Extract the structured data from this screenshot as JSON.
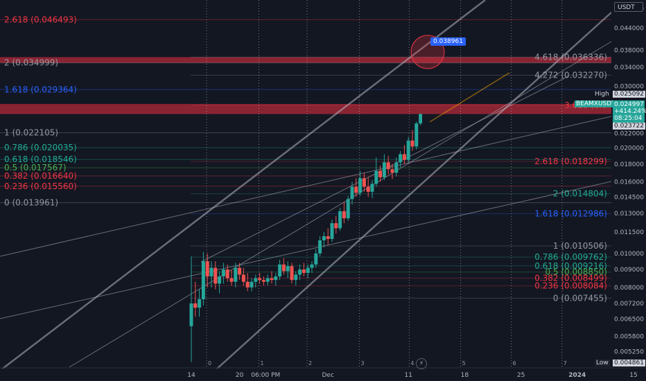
{
  "currency": "USDT",
  "tooltip_value": "0.038961",
  "high_label": "High",
  "high_value": "0.025092",
  "pair": "BEAMXUSDT",
  "price": "0.024997",
  "price_change": "+414.24%",
  "countdown": "08:25:04",
  "prev_value": "0.023722",
  "low_label": "Low",
  "low_value": "0.004861",
  "bolt_icon": "lightning-icon",
  "colors": {
    "background": "#131722",
    "up": "#26a69a",
    "down": "#ef5350",
    "zone": "#b2293a",
    "fib_red": "#f23645",
    "fib_blue": "#2962ff",
    "fib_teal": "#22ab94",
    "fib_gray": "#9598a1"
  },
  "fib_left": [
    {
      "label": "2.618 (0.046493)",
      "price": 0.046493,
      "color": "#f23645"
    },
    {
      "label": "2 (0.034999)",
      "price": 0.034999,
      "color": "#9598a1"
    },
    {
      "label": "1.618 (0.029364)",
      "price": 0.029364,
      "color": "#2962ff"
    },
    {
      "label": "1 (0.022105)",
      "price": 0.022105,
      "color": "#9598a1"
    },
    {
      "label": "0.786 (0.020035)",
      "price": 0.020035,
      "color": "#22ab94"
    },
    {
      "label": "0.618 (0.018546)",
      "price": 0.018546,
      "color": "#22ab94"
    },
    {
      "label": "0.5 (0.017567)",
      "price": 0.017567,
      "color": "#4caf50"
    },
    {
      "label": "0.382 (0.016640)",
      "price": 0.01664,
      "color": "#f23645"
    },
    {
      "label": "0.236 (0.015560)",
      "price": 0.01556,
      "color": "#f23645"
    },
    {
      "label": "0 (0.013961)",
      "price": 0.013961,
      "color": "#9598a1"
    }
  ],
  "fib_right": [
    {
      "label": "4.618 (0.036336)",
      "price": 0.036336,
      "color": "#9598a1"
    },
    {
      "label": "4.272 (0.032270)",
      "price": 0.03227,
      "color": "#9598a1"
    },
    {
      "label": "3.618 (0.0",
      "price": 0.0265,
      "color": "#f23645"
    },
    {
      "label": "2.618 (0.018299)",
      "price": 0.018299,
      "color": "#f23645"
    },
    {
      "label": "2 (0.014804)",
      "price": 0.014804,
      "color": "#22ab94"
    },
    {
      "label": "1.618 (0.012986)",
      "price": 0.012986,
      "color": "#2962ff"
    },
    {
      "label": "1 (0.010506)",
      "price": 0.010506,
      "color": "#9598a1"
    },
    {
      "label": "0.786 (0.009762)",
      "price": 0.009762,
      "color": "#22ab94"
    },
    {
      "label": "0.618 (0.009216)",
      "price": 0.009216,
      "color": "#22ab94"
    },
    {
      "label": "0.5 (0.008850)",
      "price": 0.00885,
      "color": "#4caf50"
    },
    {
      "label": "0.382 (0.008499)",
      "price": 0.008499,
      "color": "#f23645"
    },
    {
      "label": "0.236 (0.008084)",
      "price": 0.008084,
      "color": "#f23645"
    },
    {
      "label": "0 (0.007455)",
      "price": 0.007455,
      "color": "#9598a1"
    }
  ],
  "zones": [
    {
      "from": 0.034999,
      "to": 0.036336
    },
    {
      "from": 0.024996,
      "to": 0.0267
    }
  ],
  "price_axis": [
    "0.050000",
    "0.044000",
    "0.038000",
    "0.034000",
    "0.030000",
    "0.026000",
    "0.022000",
    "0.020000",
    "0.018000",
    "0.016000",
    "0.014500",
    "0.013000",
    "0.011500",
    "0.010000",
    "0.009000",
    "0.008000",
    "0.007200",
    "0.006500",
    "0.005800",
    "0.005250"
  ],
  "date_axis": [
    {
      "label": "14",
      "t": 0
    },
    {
      "label": "20",
      "t": 6
    },
    {
      "label": "06:00 PM",
      "t": 9.25
    },
    {
      "label": "Dec",
      "t": 17
    },
    {
      "label": "11",
      "t": 27
    },
    {
      "label": "18",
      "t": 34
    },
    {
      "label": "25",
      "t": 41
    },
    {
      "label": "2024",
      "t": 48
    },
    {
      "label": "15",
      "t": 55
    }
  ],
  "cycle_lines": [
    {
      "label": "0",
      "t": 1.9
    },
    {
      "label": "1",
      "t": 8.4
    },
    {
      "label": "2",
      "t": 14.4
    },
    {
      "label": "3",
      "t": 20.9
    },
    {
      "label": "4",
      "t": 27.1
    },
    {
      "label": "5",
      "t": 33.5
    },
    {
      "label": "6",
      "t": 39.8
    },
    {
      "label": "7",
      "t": 46.1
    },
    {
      "label": "8",
      "t": 52.3
    }
  ],
  "chart_data": {
    "type": "candlestick",
    "x_unit": "days since Nov 14",
    "log_scale": true,
    "ohlc": [
      [
        0.0,
        0.0062,
        0.0098,
        0.0049,
        0.0072
      ],
      [
        0.5,
        0.0072,
        0.0083,
        0.0066,
        0.007
      ],
      [
        1.0,
        0.007,
        0.0079,
        0.0066,
        0.0074
      ],
      [
        1.5,
        0.0074,
        0.0101,
        0.0071,
        0.0095
      ],
      [
        2.0,
        0.0095,
        0.01,
        0.008,
        0.0086
      ],
      [
        2.5,
        0.0086,
        0.0095,
        0.008,
        0.0091
      ],
      [
        3.0,
        0.0091,
        0.0095,
        0.0079,
        0.0082
      ],
      [
        3.5,
        0.0082,
        0.0089,
        0.0077,
        0.0086
      ],
      [
        4.0,
        0.0086,
        0.0094,
        0.0082,
        0.009
      ],
      [
        4.5,
        0.009,
        0.0093,
        0.0083,
        0.0085
      ],
      [
        5.0,
        0.0085,
        0.009,
        0.0081,
        0.0083
      ],
      [
        5.5,
        0.0083,
        0.0094,
        0.008,
        0.0091
      ],
      [
        6.0,
        0.0091,
        0.0094,
        0.0084,
        0.0087
      ],
      [
        6.5,
        0.0087,
        0.0091,
        0.0081,
        0.0083
      ],
      [
        7.0,
        0.0083,
        0.0088,
        0.0078,
        0.008
      ],
      [
        7.5,
        0.008,
        0.0085,
        0.0078,
        0.0083
      ],
      [
        8.0,
        0.0083,
        0.0087,
        0.008,
        0.0085
      ],
      [
        8.5,
        0.0085,
        0.0088,
        0.0082,
        0.0084
      ],
      [
        9.0,
        0.0084,
        0.0086,
        0.0081,
        0.0083
      ],
      [
        9.5,
        0.0083,
        0.0087,
        0.0081,
        0.0085
      ],
      [
        10.0,
        0.0085,
        0.0089,
        0.0082,
        0.0084
      ],
      [
        10.5,
        0.0084,
        0.0088,
        0.0081,
        0.0086
      ],
      [
        11.0,
        0.0086,
        0.0096,
        0.0084,
        0.0093
      ],
      [
        11.5,
        0.0093,
        0.0097,
        0.0087,
        0.0089
      ],
      [
        12.0,
        0.0089,
        0.0095,
        0.0085,
        0.0092
      ],
      [
        12.5,
        0.0092,
        0.0094,
        0.0082,
        0.0084
      ],
      [
        13.0,
        0.0084,
        0.0089,
        0.0081,
        0.0087
      ],
      [
        13.5,
        0.0087,
        0.0093,
        0.0084,
        0.009
      ],
      [
        14.0,
        0.009,
        0.0094,
        0.0086,
        0.0088
      ],
      [
        14.5,
        0.0088,
        0.0093,
        0.0085,
        0.0091
      ],
      [
        15.0,
        0.0091,
        0.0095,
        0.0088,
        0.0093
      ],
      [
        15.5,
        0.0093,
        0.0103,
        0.0091,
        0.01
      ],
      [
        16.0,
        0.01,
        0.0112,
        0.0098,
        0.0109
      ],
      [
        16.5,
        0.0109,
        0.0115,
        0.0104,
        0.0112
      ],
      [
        17.0,
        0.0112,
        0.0118,
        0.0106,
        0.011
      ],
      [
        17.5,
        0.011,
        0.0125,
        0.0108,
        0.0122
      ],
      [
        18.0,
        0.0122,
        0.0128,
        0.0114,
        0.0118
      ],
      [
        18.5,
        0.0118,
        0.0135,
        0.0116,
        0.0132
      ],
      [
        19.0,
        0.0132,
        0.014,
        0.0122,
        0.0126
      ],
      [
        19.5,
        0.0126,
        0.0146,
        0.0124,
        0.0143
      ],
      [
        20.0,
        0.0143,
        0.016,
        0.0138,
        0.0155
      ],
      [
        20.5,
        0.0155,
        0.0164,
        0.0145,
        0.0149
      ],
      [
        21.0,
        0.0149,
        0.0172,
        0.0146,
        0.0164
      ],
      [
        21.5,
        0.0164,
        0.017,
        0.015,
        0.0155
      ],
      [
        22.0,
        0.0155,
        0.0165,
        0.0145,
        0.015
      ],
      [
        22.5,
        0.015,
        0.0162,
        0.0144,
        0.0158
      ],
      [
        23.0,
        0.0158,
        0.0188,
        0.0155,
        0.0172
      ],
      [
        23.5,
        0.0172,
        0.0178,
        0.016,
        0.0165
      ],
      [
        24.0,
        0.0165,
        0.0192,
        0.0162,
        0.0182
      ],
      [
        24.5,
        0.0182,
        0.019,
        0.0168,
        0.0174
      ],
      [
        25.0,
        0.0174,
        0.018,
        0.0163,
        0.017
      ],
      [
        25.5,
        0.017,
        0.0188,
        0.0166,
        0.0182
      ],
      [
        26.0,
        0.0182,
        0.0196,
        0.0176,
        0.0192
      ],
      [
        26.5,
        0.0192,
        0.0204,
        0.018,
        0.0185
      ],
      [
        27.0,
        0.0185,
        0.0215,
        0.0182,
        0.021
      ],
      [
        27.5,
        0.021,
        0.0225,
        0.0196,
        0.0202
      ],
      [
        28.0,
        0.0202,
        0.0238,
        0.0198,
        0.0235
      ],
      [
        28.5,
        0.0235,
        0.0251,
        0.0232,
        0.025
      ]
    ]
  }
}
